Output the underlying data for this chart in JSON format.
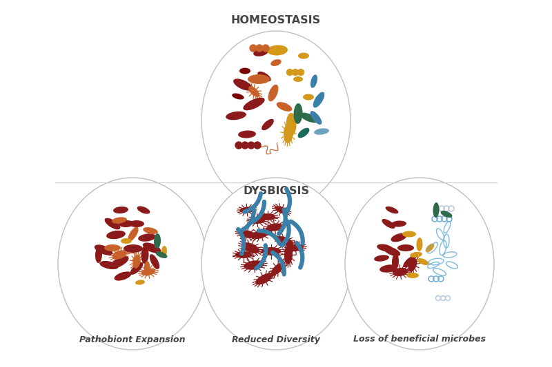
{
  "title_homeostasis": "HOMEOSTASIS",
  "title_dysbiosis": "DYSBIOSIS",
  "label1": "Pathobiont Expansion",
  "label2": "Reduced Diversity",
  "label3": "Loss of beneficial microbes",
  "bg_color": "#ffffff",
  "colors": {
    "dark_red": "#8B1A1A",
    "dark_red2": "#7B0000",
    "orange": "#C8622A",
    "gold": "#D4981A",
    "dark_green": "#2F6B4A",
    "teal": "#1B6B5A",
    "steel_blue": "#3A7FA8",
    "light_blue": "#6BA3BE",
    "outline_blue": "#6BAED6",
    "outline_light": "#B0C4DE",
    "purple": "#7B5EA7",
    "circle_border": "#CCCCCC"
  }
}
